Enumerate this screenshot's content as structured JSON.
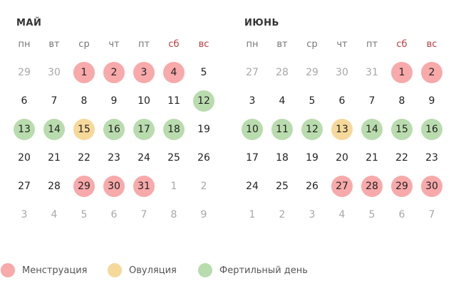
{
  "colors": {
    "menstruation": "#f8a9aa",
    "ovulation": "#f6d99a",
    "fertile": "#b9dcae",
    "weekend": "#c0393b",
    "muted": "#a8a8a8"
  },
  "weekdays": [
    "пн",
    "вт",
    "ср",
    "чт",
    "пт",
    "сб",
    "вс"
  ],
  "months": [
    {
      "title": "МАЙ",
      "weeks": [
        [
          {
            "d": "29",
            "t": "muted"
          },
          {
            "d": "30",
            "t": "muted"
          },
          {
            "d": "1",
            "t": "menstr"
          },
          {
            "d": "2",
            "t": "menstr"
          },
          {
            "d": "3",
            "t": "menstr"
          },
          {
            "d": "4",
            "t": "menstr"
          },
          {
            "d": "5",
            "t": ""
          }
        ],
        [
          {
            "d": "6",
            "t": ""
          },
          {
            "d": "7",
            "t": ""
          },
          {
            "d": "8",
            "t": ""
          },
          {
            "d": "9",
            "t": ""
          },
          {
            "d": "10",
            "t": ""
          },
          {
            "d": "11",
            "t": ""
          },
          {
            "d": "12",
            "t": "fert"
          }
        ],
        [
          {
            "d": "13",
            "t": "fert"
          },
          {
            "d": "14",
            "t": "fert"
          },
          {
            "d": "15",
            "t": "ovul"
          },
          {
            "d": "16",
            "t": "fert"
          },
          {
            "d": "17",
            "t": "fert"
          },
          {
            "d": "18",
            "t": "fert"
          },
          {
            "d": "19",
            "t": ""
          }
        ],
        [
          {
            "d": "20",
            "t": ""
          },
          {
            "d": "21",
            "t": ""
          },
          {
            "d": "22",
            "t": ""
          },
          {
            "d": "23",
            "t": ""
          },
          {
            "d": "24",
            "t": ""
          },
          {
            "d": "25",
            "t": ""
          },
          {
            "d": "26",
            "t": ""
          }
        ],
        [
          {
            "d": "27",
            "t": ""
          },
          {
            "d": "28",
            "t": ""
          },
          {
            "d": "29",
            "t": "menstr"
          },
          {
            "d": "30",
            "t": "menstr"
          },
          {
            "d": "31",
            "t": "menstr"
          },
          {
            "d": "1",
            "t": "muted"
          },
          {
            "d": "2",
            "t": "muted"
          }
        ],
        [
          {
            "d": "3",
            "t": "muted"
          },
          {
            "d": "4",
            "t": "muted"
          },
          {
            "d": "5",
            "t": "muted"
          },
          {
            "d": "6",
            "t": "muted"
          },
          {
            "d": "7",
            "t": "muted"
          },
          {
            "d": "8",
            "t": "muted"
          },
          {
            "d": "9",
            "t": "muted"
          }
        ]
      ]
    },
    {
      "title": "ИЮНЬ",
      "weeks": [
        [
          {
            "d": "27",
            "t": "muted"
          },
          {
            "d": "28",
            "t": "muted"
          },
          {
            "d": "29",
            "t": "muted"
          },
          {
            "d": "30",
            "t": "muted"
          },
          {
            "d": "31",
            "t": "muted"
          },
          {
            "d": "1",
            "t": "menstr"
          },
          {
            "d": "2",
            "t": "menstr"
          }
        ],
        [
          {
            "d": "3",
            "t": ""
          },
          {
            "d": "4",
            "t": ""
          },
          {
            "d": "5",
            "t": ""
          },
          {
            "d": "6",
            "t": ""
          },
          {
            "d": "7",
            "t": ""
          },
          {
            "d": "8",
            "t": ""
          },
          {
            "d": "9",
            "t": ""
          }
        ],
        [
          {
            "d": "10",
            "t": "fert"
          },
          {
            "d": "11",
            "t": "fert"
          },
          {
            "d": "12",
            "t": "fert"
          },
          {
            "d": "13",
            "t": "ovul"
          },
          {
            "d": "14",
            "t": "fert"
          },
          {
            "d": "15",
            "t": "fert"
          },
          {
            "d": "16",
            "t": "fert"
          }
        ],
        [
          {
            "d": "17",
            "t": ""
          },
          {
            "d": "18",
            "t": ""
          },
          {
            "d": "19",
            "t": ""
          },
          {
            "d": "20",
            "t": ""
          },
          {
            "d": "21",
            "t": ""
          },
          {
            "d": "22",
            "t": ""
          },
          {
            "d": "23",
            "t": ""
          }
        ],
        [
          {
            "d": "24",
            "t": ""
          },
          {
            "d": "25",
            "t": ""
          },
          {
            "d": "26",
            "t": ""
          },
          {
            "d": "27",
            "t": "menstr"
          },
          {
            "d": "28",
            "t": "menstr"
          },
          {
            "d": "29",
            "t": "menstr"
          },
          {
            "d": "30",
            "t": "menstr"
          }
        ],
        [
          {
            "d": "1",
            "t": "muted"
          },
          {
            "d": "2",
            "t": "muted"
          },
          {
            "d": "3",
            "t": "muted"
          },
          {
            "d": "4",
            "t": "muted"
          },
          {
            "d": "5",
            "t": "muted"
          },
          {
            "d": "6",
            "t": "muted"
          },
          {
            "d": "7",
            "t": "muted"
          }
        ]
      ]
    }
  ],
  "legend": [
    {
      "label": "Менструация",
      "type": "menstr",
      "icon": "pink-circle-icon"
    },
    {
      "label": "Овуляция",
      "type": "ovul",
      "icon": "yellow-circle-icon"
    },
    {
      "label": "Фертильный день",
      "type": "fert",
      "icon": "green-circle-icon"
    }
  ]
}
